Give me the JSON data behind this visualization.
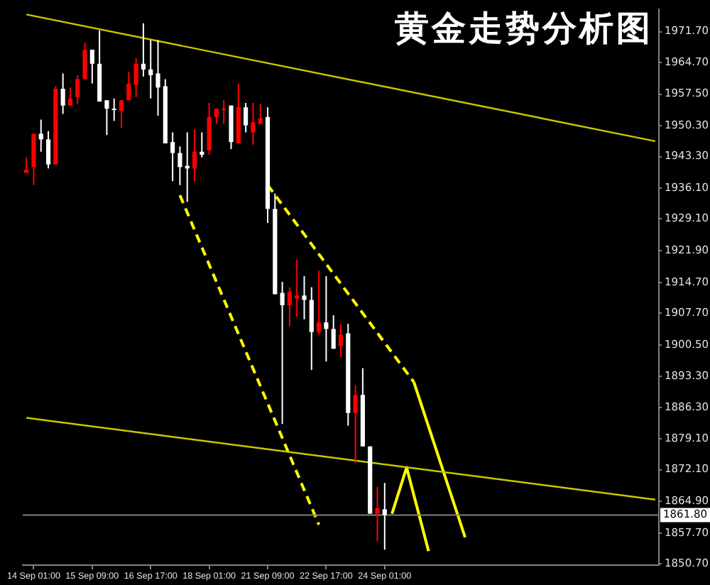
{
  "chart_data": {
    "type": "candlestick",
    "title": "黄金走势分析图",
    "categories": [
      null,
      "14 Sep 01:00",
      null,
      null,
      null,
      null,
      null,
      null,
      null,
      "15 Sep 09:00",
      null,
      null,
      null,
      null,
      null,
      null,
      null,
      "16 Sep 17:00",
      null,
      null,
      null,
      null,
      null,
      null,
      null,
      "18 Sep 01:00",
      null,
      null,
      null,
      null,
      null,
      null,
      null,
      "21 Sep 09:00",
      null,
      null,
      null,
      null,
      null,
      null,
      null,
      "22 Sep 17:00",
      null,
      null,
      null,
      null,
      null,
      null,
      null,
      "24 Sep 01:00",
      null,
      null,
      null,
      null,
      null,
      null,
      null,
      null,
      null,
      null,
      null,
      null,
      null,
      null,
      null,
      null,
      null,
      null,
      null,
      null,
      null,
      null,
      null,
      null,
      null,
      null,
      null,
      null,
      null,
      null,
      null,
      null,
      null,
      null,
      null,
      null,
      null
    ],
    "ohlc": [
      [
        1939.6,
        1943.1,
        1939.6,
        1940.3
      ],
      [
        1940.9,
        1948.5,
        1936.8,
        1948.5
      ],
      [
        1948.5,
        1951.7,
        1944.4,
        1947.2
      ],
      [
        1947.2,
        1949.1,
        1940.6,
        1941.5
      ],
      [
        1941.5,
        1959.3,
        1941.5,
        1958.7
      ],
      [
        1958.7,
        1962.2,
        1953.0,
        1954.9
      ],
      [
        1954.9,
        1959.0,
        1954.9,
        1956.5
      ],
      [
        1956.8,
        1961.8,
        1955.2,
        1960.9
      ],
      [
        1960.9,
        1969.2,
        1960.9,
        1967.6
      ],
      [
        1967.6,
        1967.6,
        1959.9,
        1964.4
      ],
      [
        1964.4,
        1972.0,
        1955.8,
        1955.8
      ],
      [
        1956.1,
        1956.1,
        1948.2,
        1954.2
      ],
      [
        1954.2,
        1956.5,
        1951.4,
        1954.2
      ],
      [
        1953.6,
        1956.1,
        1949.8,
        1956.1
      ],
      [
        1956.1,
        1962.5,
        1956.1,
        1959.9
      ],
      [
        1959.6,
        1965.7,
        1956.8,
        1964.4
      ],
      [
        1964.4,
        1973.6,
        1961.5,
        1963.1
      ],
      [
        1963.1,
        1969.8,
        1956.5,
        1961.8
      ],
      [
        1962.2,
        1969.8,
        1952.6,
        1959.0
      ],
      [
        1959.3,
        1960.9,
        1946.3,
        1946.3
      ],
      [
        1946.6,
        1948.8,
        1937.7,
        1944.1
      ],
      [
        1944.1,
        1945.6,
        1936.8,
        1940.9
      ],
      [
        1941.2,
        1948.8,
        1933.0,
        1940.6
      ],
      [
        1940.6,
        1949.5,
        1937.7,
        1944.4
      ],
      [
        1944.4,
        1948.8,
        1943.1,
        1943.7
      ],
      [
        1944.7,
        1955.5,
        1943.7,
        1952.3
      ],
      [
        1952.3,
        1954.2,
        1950.7,
        1954.2
      ],
      [
        1953.9,
        1956.1,
        1950.7,
        1954.2
      ],
      [
        1954.9,
        1954.9,
        1945.0,
        1946.6
      ],
      [
        1946.3,
        1959.9,
        1946.3,
        1954.5
      ],
      [
        1954.5,
        1955.5,
        1948.8,
        1950.4
      ],
      [
        1948.8,
        1955.5,
        1946.0,
        1951.1
      ],
      [
        1950.7,
        1955.2,
        1950.7,
        1952.0
      ],
      [
        1952.3,
        1954.5,
        1928.2,
        1931.4
      ],
      [
        1931.4,
        1934.9,
        1912.0,
        1912.0
      ],
      [
        1912.3,
        1914.8,
        1882.5,
        1909.5
      ],
      [
        1909.5,
        1913.6,
        1904.7,
        1912.6
      ],
      [
        1911.0,
        1919.9,
        1906.9,
        1911.7
      ],
      [
        1911.7,
        1916.1,
        1906.3,
        1910.7
      ],
      [
        1910.7,
        1913.6,
        1894.8,
        1903.4
      ],
      [
        1903.4,
        1917.4,
        1902.8,
        1905.6
      ],
      [
        1905.6,
        1916.1,
        1896.7,
        1904.1
      ],
      [
        1904.1,
        1907.2,
        1899.6,
        1899.6
      ],
      [
        1900.2,
        1905.3,
        1897.7,
        1902.8
      ],
      [
        1903.1,
        1905.3,
        1882.1,
        1885.0
      ],
      [
        1885.0,
        1891.3,
        1873.6,
        1889.1
      ],
      [
        1889.1,
        1895.2,
        1877.4,
        1877.4
      ],
      [
        1877.4,
        1877.4,
        1862.1,
        1862.1
      ],
      [
        1862.1,
        1868.2,
        1855.8,
        1863.4
      ],
      [
        1863.1,
        1869.1,
        1853.9,
        1861.8
      ],
      null,
      null,
      null,
      null,
      null,
      null,
      null,
      null,
      null,
      null,
      null,
      null,
      null,
      null,
      null,
      null,
      null,
      null,
      null,
      null,
      null,
      null,
      null,
      null,
      null,
      null,
      null,
      null,
      null,
      null,
      null,
      null,
      null,
      null,
      null,
      null,
      null
    ],
    "colors": [
      "#ff0000",
      "#ff0000",
      "#ffffff",
      "#ffffff",
      "#ff0000",
      "#ffffff",
      "#ff0000",
      "#ff0000",
      "#ff0000",
      "#ffffff",
      "#ffffff",
      "#ffffff",
      "#ffffff",
      "#ff0000",
      "#ff0000",
      "#ff0000",
      "#ffffff",
      "#ffffff",
      "#ffffff",
      "#ffffff",
      "#ffffff",
      "#ffffff",
      "#ffffff",
      "#ff0000",
      "#ffffff",
      "#ff0000",
      "#ff0000",
      "#ff0000",
      "#ffffff",
      "#ff0000",
      "#ffffff",
      "#ff0000",
      "#ff0000",
      "#ffffff",
      "#ffffff",
      "#ffffff",
      "#ff0000",
      "#ff0000",
      "#ffffff",
      "#ffffff",
      "#ff0000",
      "#ffffff",
      "#ffffff",
      "#ff0000",
      "#ffffff",
      "#ff0000",
      "#ffffff",
      "#ffffff",
      "#ff0000",
      "#ffffff",
      null,
      null,
      null,
      null,
      null,
      null,
      null,
      null,
      null,
      null,
      null,
      null,
      null,
      null,
      null,
      null,
      null,
      null,
      null,
      null,
      null,
      null,
      null,
      null,
      null,
      null,
      null,
      null,
      null,
      null,
      null,
      null,
      null,
      null,
      null,
      null,
      null
    ],
    "series": [
      {
        "type": "line",
        "color": "#c8c800",
        "values": [
          1975.6,
          null,
          null,
          null,
          null,
          null,
          null,
          null,
          null,
          null,
          null,
          null,
          null,
          null,
          null,
          null,
          null,
          null,
          null,
          null,
          null,
          null,
          null,
          null,
          null,
          null,
          null,
          null,
          null,
          null,
          null,
          null,
          null,
          null,
          null,
          null,
          null,
          null,
          null,
          null,
          null,
          null,
          null,
          null,
          null,
          null,
          null,
          null,
          null,
          null,
          null,
          null,
          null,
          null,
          null,
          null,
          null,
          null,
          null,
          null,
          null,
          null,
          null,
          null,
          null,
          null,
          null,
          null,
          null,
          null,
          null,
          null,
          null,
          null,
          null,
          null,
          null,
          null,
          null,
          null,
          null,
          null,
          null,
          null,
          null,
          null,
          1946.8
        ]
      },
      {
        "type": "line",
        "color": "#c8c800",
        "values": [
          1883.9,
          null,
          null,
          null,
          null,
          null,
          null,
          null,
          null,
          null,
          null,
          null,
          null,
          null,
          null,
          null,
          null,
          null,
          null,
          null,
          null,
          null,
          null,
          null,
          null,
          null,
          null,
          null,
          null,
          null,
          null,
          null,
          null,
          null,
          null,
          null,
          null,
          null,
          null,
          null,
          null,
          null,
          null,
          null,
          null,
          null,
          null,
          null,
          null,
          null,
          null,
          null,
          null,
          null,
          null,
          null,
          null,
          null,
          null,
          null,
          null,
          null,
          null,
          null,
          null,
          null,
          null,
          null,
          null,
          null,
          null,
          null,
          null,
          null,
          null,
          null,
          null,
          null,
          null,
          null,
          null,
          null,
          null,
          null,
          null,
          null,
          1865.3
        ]
      },
      {
        "type": "line",
        "color": "#ffff00",
        "line_style": "dashed",
        "values": [
          null,
          null,
          null,
          null,
          null,
          null,
          null,
          null,
          null,
          null,
          null,
          null,
          null,
          null,
          null,
          null,
          null,
          null,
          null,
          null,
          null,
          1934.5,
          null,
          null,
          null,
          null,
          null,
          null,
          null,
          null,
          null,
          null,
          null,
          null,
          null,
          null,
          null,
          null,
          null,
          null,
          1859.6,
          null,
          null,
          null,
          null,
          null,
          null,
          null,
          null,
          null,
          null,
          null,
          null,
          null,
          null,
          null,
          null,
          null,
          null,
          null,
          null,
          null,
          null,
          null,
          null,
          null,
          null,
          null,
          null,
          null,
          null,
          null,
          null,
          null,
          null,
          null,
          null,
          null,
          null,
          null,
          null,
          null,
          null,
          null,
          null,
          null,
          null
        ]
      },
      {
        "type": "line",
        "color": "#ffff00",
        "line_style": "dashed",
        "values": [
          null,
          null,
          null,
          null,
          null,
          null,
          null,
          null,
          null,
          null,
          null,
          null,
          null,
          null,
          null,
          null,
          null,
          null,
          null,
          null,
          null,
          null,
          null,
          null,
          null,
          null,
          null,
          null,
          null,
          null,
          null,
          null,
          null,
          1936.8,
          null,
          null,
          null,
          null,
          null,
          null,
          null,
          null,
          null,
          null,
          null,
          null,
          null,
          null,
          null,
          null,
          null,
          null,
          null,
          1892.0,
          null,
          null,
          null,
          null,
          null,
          null,
          null,
          null,
          null,
          null,
          null,
          null,
          null,
          null,
          null,
          null,
          null,
          null,
          null,
          null,
          null,
          null,
          null,
          null,
          null,
          null,
          null,
          null,
          null,
          null,
          null,
          null,
          null
        ]
      },
      {
        "type": "line",
        "color": "#ffff00",
        "line_style": "solid",
        "values": [
          null,
          null,
          null,
          null,
          null,
          null,
          null,
          null,
          null,
          null,
          null,
          null,
          null,
          null,
          null,
          null,
          null,
          null,
          null,
          null,
          null,
          null,
          null,
          null,
          null,
          null,
          null,
          null,
          null,
          null,
          null,
          null,
          null,
          null,
          null,
          null,
          null,
          null,
          null,
          null,
          null,
          null,
          null,
          null,
          null,
          null,
          null,
          null,
          null,
          null,
          null,
          null,
          null,
          1892.0,
          null,
          null,
          null,
          null,
          null,
          null,
          1856.7,
          null,
          null,
          null,
          null,
          null,
          null,
          null,
          null,
          null,
          null,
          null,
          null,
          null,
          null,
          null,
          null,
          null,
          null,
          null,
          null,
          null,
          null,
          null,
          null,
          null,
          null
        ]
      },
      {
        "type": "line",
        "color": "#ffff00",
        "line_style": "solid",
        "values": [
          null,
          null,
          null,
          null,
          null,
          null,
          null,
          null,
          null,
          null,
          null,
          null,
          null,
          null,
          null,
          null,
          null,
          null,
          null,
          null,
          null,
          null,
          null,
          null,
          null,
          null,
          null,
          null,
          null,
          null,
          null,
          null,
          null,
          null,
          null,
          null,
          null,
          null,
          null,
          null,
          null,
          null,
          null,
          null,
          null,
          null,
          null,
          null,
          null,
          null,
          1862.1,
          null,
          1872.6,
          null,
          null,
          1853.6,
          null,
          null,
          null,
          null,
          null,
          null,
          null,
          null,
          null,
          null,
          null,
          null,
          null,
          null,
          null,
          null,
          null,
          null,
          null,
          null,
          null,
          null,
          null,
          null,
          null,
          null,
          null,
          null,
          null,
          null,
          null
        ]
      }
    ],
    "ref_lines": [
      {
        "axis": "y",
        "value": 1861.8,
        "label": "1861.80",
        "color": "#808080"
      }
    ],
    "ylim": [
      1850.4,
      1976.8
    ],
    "yticks": [
      {
        "value": 1971.7,
        "label": "1971.70"
      },
      {
        "value": 1964.7,
        "label": "1964.70"
      },
      {
        "value": 1957.5,
        "label": "1957.50"
      },
      {
        "value": 1950.3,
        "label": "1950.30"
      },
      {
        "value": 1943.3,
        "label": "1943.30"
      },
      {
        "value": 1936.1,
        "label": "1936.10"
      },
      {
        "value": 1929.1,
        "label": "1929.10"
      },
      {
        "value": 1921.9,
        "label": "1921.90"
      },
      {
        "value": 1914.7,
        "label": "1914.70"
      },
      {
        "value": 1907.7,
        "label": "1907.70"
      },
      {
        "value": 1900.5,
        "label": "1900.50"
      },
      {
        "value": 1893.3,
        "label": "1893.30"
      },
      {
        "value": 1886.3,
        "label": "1886.30"
      },
      {
        "value": 1879.1,
        "label": "1879.10"
      },
      {
        "value": 1872.1,
        "label": "1872.10"
      },
      {
        "value": 1864.9,
        "label": "1864.90"
      },
      {
        "value": 1857.7,
        "label": "1857.70"
      },
      {
        "value": 1850.7,
        "label": "1850.70"
      }
    ],
    "legend": false
  }
}
